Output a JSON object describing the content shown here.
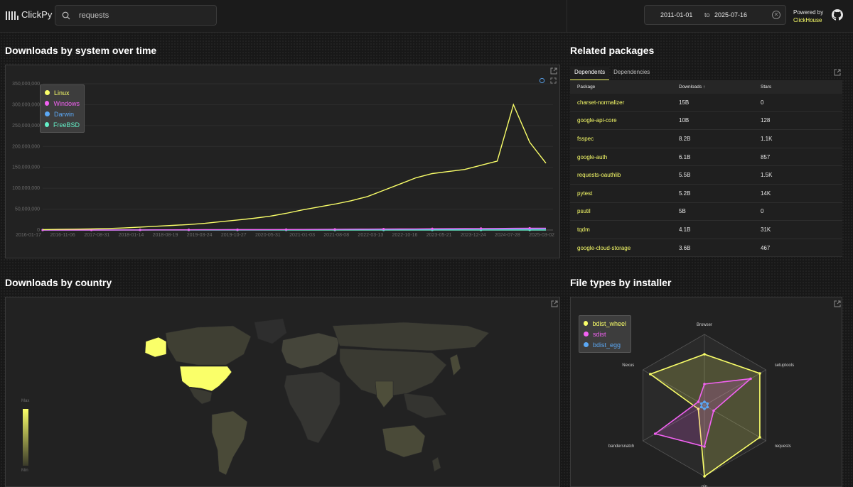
{
  "app": {
    "name": "ClickPy"
  },
  "search": {
    "value": "requests"
  },
  "dates": {
    "from": "2011-01-01",
    "to_label": "to",
    "to": "2025-07-16"
  },
  "powered": {
    "line1": "Powered by",
    "line2": "ClickHouse"
  },
  "sections": {
    "system": "Downloads by system over time",
    "related": "Related packages",
    "country": "Downloads by country",
    "filetypes": "File types by installer"
  },
  "colors": {
    "linux": "#faff69",
    "windows": "#f262f2",
    "darwin": "#5ba8f5",
    "freebsd": "#64f0c8",
    "accent": "#faff69"
  },
  "chart_data": [
    {
      "type": "line",
      "ylim": [
        0,
        350000000
      ],
      "yticks": [
        "0",
        "50,000,000",
        "100,000,000",
        "150,000,000",
        "200,000,000",
        "250,000,000",
        "300,000,000",
        "350,000,000"
      ],
      "xticks": [
        "2016-01-17",
        "2016-11-06",
        "2017-08-31",
        "2018-01-14",
        "2018-08-19",
        "2019-03-24",
        "2019-10-27",
        "2020-05-31",
        "2021-01-03",
        "2021-08-08",
        "2022-03-13",
        "2022-10-16",
        "2023-05-21",
        "2023-12-24",
        "2024-07-28",
        "2025-03-02"
      ],
      "legend_position": "top-left",
      "series": [
        {
          "name": "Linux",
          "color": "#faff69",
          "values": [
            1000000,
            1500000,
            2000000,
            2500000,
            3500000,
            5000000,
            7000000,
            9000000,
            11000000,
            13000000,
            16000000,
            20000000,
            24000000,
            28000000,
            33000000,
            40000000,
            48000000,
            55000000,
            62000000,
            70000000,
            80000000,
            95000000,
            110000000,
            125000000,
            135000000,
            140000000,
            145000000,
            155000000,
            165000000,
            300000000,
            210000000,
            160000000
          ]
        },
        {
          "name": "Windows",
          "color": "#f262f2",
          "values": [
            0,
            0,
            0,
            0,
            0,
            100000,
            200000,
            300000,
            400000,
            500000,
            600000,
            700000,
            800000,
            900000,
            1000000,
            1200000,
            1400000,
            1600000,
            1800000,
            2000000,
            2200000,
            2400000,
            2600000,
            2800000,
            3000000,
            3200000,
            3400000,
            3600000,
            3800000,
            4000000,
            4200000,
            4400000
          ]
        },
        {
          "name": "Darwin",
          "color": "#5ba8f5",
          "values": [
            0,
            0,
            0,
            0,
            0,
            100000,
            200000,
            300000,
            400000,
            500000,
            600000,
            700000,
            800000,
            900000,
            1000000,
            1100000,
            1200000,
            1300000,
            1400000,
            1500000,
            1600000,
            1700000,
            1800000,
            1900000,
            2000000,
            2100000,
            2200000,
            2300000,
            2400000,
            2500000,
            2600000,
            2700000
          ]
        },
        {
          "name": "FreeBSD",
          "color": "#64f0c8",
          "values": [
            0,
            0,
            0,
            0,
            0,
            0,
            0,
            0,
            0,
            0,
            0,
            0,
            0,
            0,
            0,
            0,
            0,
            0,
            0,
            0,
            0,
            0,
            0,
            0,
            0,
            0,
            0,
            0,
            0,
            0,
            0,
            0
          ]
        }
      ]
    },
    {
      "type": "radar",
      "axes": [
        "Browser",
        "setuptools",
        "requests",
        "pip",
        "bandersnatch",
        "Nexus"
      ],
      "max": 1.0,
      "legend_position": "top-left",
      "series": [
        {
          "name": "bdist_wheel",
          "color": "#faff69",
          "values": [
            0.72,
            0.9,
            0.9,
            1.0,
            0.1,
            0.88
          ]
        },
        {
          "name": "sdist",
          "color": "#f262f2",
          "values": [
            0.3,
            0.75,
            0.15,
            0.58,
            0.8,
            0.1
          ]
        },
        {
          "name": "bdist_egg",
          "color": "#5ba8f5",
          "values": [
            0.05,
            0.05,
            0.05,
            0.05,
            0.05,
            0.05
          ]
        }
      ]
    }
  ],
  "related": {
    "tabs": [
      "Dependents",
      "Dependencies"
    ],
    "columns": [
      "Package",
      "Downloads ↑",
      "Stars"
    ],
    "rows": [
      {
        "pkg": "charset-normalizer",
        "downloads": "15B",
        "stars": "0"
      },
      {
        "pkg": "google-api-core",
        "downloads": "10B",
        "stars": "128"
      },
      {
        "pkg": "fsspec",
        "downloads": "8.2B",
        "stars": "1.1K"
      },
      {
        "pkg": "google-auth",
        "downloads": "6.1B",
        "stars": "857"
      },
      {
        "pkg": "requests-oauthlib",
        "downloads": "5.5B",
        "stars": "1.5K"
      },
      {
        "pkg": "pytest",
        "downloads": "5.2B",
        "stars": "14K"
      },
      {
        "pkg": "psutil",
        "downloads": "5B",
        "stars": "0"
      },
      {
        "pkg": "tqdm",
        "downloads": "4.1B",
        "stars": "31K"
      },
      {
        "pkg": "google-cloud-storage",
        "downloads": "3.6B",
        "stars": "467"
      }
    ]
  },
  "map": {
    "max_label": "Max",
    "min_label": "Min"
  },
  "icons": {
    "logo": "bars-logo-icon",
    "search": "search-icon",
    "clear": "clear-icon",
    "github": "github-icon",
    "external": "external-link-icon",
    "refresh": "refresh-icon",
    "fullscreen": "fullscreen-icon"
  }
}
